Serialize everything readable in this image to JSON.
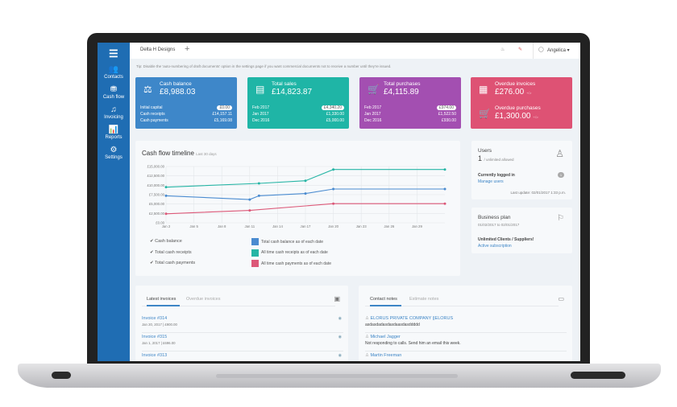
{
  "topbar": {
    "company": "Delta H Designs",
    "add": "+",
    "user": "Angelica ▾"
  },
  "tip": "Tip: Disable the 'auto-numbering of draft documents' option in the settings page if you want commercial documents not to receive a number until they're issued.",
  "sidebar": [
    {
      "label": "Contacts",
      "icon": "👥"
    },
    {
      "label": "Cash flow",
      "icon": "⛃"
    },
    {
      "label": "Invoicing",
      "icon": "♫"
    },
    {
      "label": "Reports",
      "icon": "📊"
    },
    {
      "label": "Settings",
      "icon": "⚙"
    }
  ],
  "cards": [
    {
      "title": "Cash balance",
      "value": "£8,988.03",
      "color": "#3e87c9",
      "icon": "⚖",
      "rows": [
        [
          "Initial capital",
          "£0.00"
        ],
        [
          "Cash receipts",
          "£14,157.11"
        ],
        [
          "Cash payments",
          "£5,169.08"
        ]
      ]
    },
    {
      "title": "Total sales",
      "value": "£14,823.87",
      "color": "#1fb5a6",
      "icon": "▤",
      "rows": [
        [
          "Feb 2017",
          "£4,340.20"
        ],
        [
          "Jan 2017",
          "£1,330.00"
        ],
        [
          "Dec 2016",
          "£5,000.00"
        ]
      ]
    },
    {
      "title": "Total purchases",
      "value": "£4,115.89",
      "color": "#a34fb1",
      "icon": "🛒",
      "rows": [
        [
          "Feb 2017",
          "£974.00"
        ],
        [
          "Jan 2017",
          "£1,522.50"
        ],
        [
          "Dec 2016",
          "£930.00"
        ]
      ]
    }
  ],
  "overdue": {
    "color": "#de5274",
    "inv_title": "Overdue invoices",
    "inv_value": "£276.00",
    "purch_title": "Overdue purchases",
    "purch_value": "£1,300.00",
    "suffix": "+Cr"
  },
  "chart_data": {
    "type": "line",
    "title": "Cash flow timeline",
    "subtitle": "Last 30 days",
    "yticks": [
      "£0.00",
      "£2,500.00",
      "£5,000.00",
      "£7,500.00",
      "£10,000.00",
      "£12,500.00",
      "£15,000.00"
    ],
    "ylim": [
      0,
      15000
    ],
    "xlim": [
      2,
      32
    ],
    "xticks": [
      {
        "d": 2,
        "l": "Jan 2"
      },
      {
        "d": 5,
        "l": "Jan 5"
      },
      {
        "d": 8,
        "l": "Jan 8"
      },
      {
        "d": 11,
        "l": "Jan 11"
      },
      {
        "d": 14,
        "l": "Jan 14"
      },
      {
        "d": 17,
        "l": "Jan 17"
      },
      {
        "d": 20,
        "l": "Jan 20"
      },
      {
        "d": 23,
        "l": "Jan 23"
      },
      {
        "d": 26,
        "l": "Jan 26"
      },
      {
        "d": 29,
        "l": "Jan 29"
      }
    ],
    "series": [
      {
        "name": "Cash balance",
        "legend": "Total cash balance as of each date",
        "color": "#4a8bd0",
        "points": [
          [
            2,
            7200
          ],
          [
            11,
            6200
          ],
          [
            12,
            7200
          ],
          [
            17,
            7800
          ],
          [
            20,
            9000
          ],
          [
            32,
            9000
          ]
        ]
      },
      {
        "name": "Total cash receipts",
        "legend": "All time cash receipts as of each date",
        "color": "#26b5a5",
        "points": [
          [
            2,
            9500
          ],
          [
            12,
            10500
          ],
          [
            17,
            11200
          ],
          [
            20,
            14200
          ],
          [
            32,
            14200
          ]
        ]
      },
      {
        "name": "Total cash payments",
        "legend": "All time cash payments as of each date",
        "color": "#dc5878",
        "points": [
          [
            2,
            2400
          ],
          [
            11,
            3300
          ],
          [
            20,
            5100
          ],
          [
            32,
            5100
          ]
        ]
      }
    ]
  },
  "users": {
    "title": "Users",
    "count": "1",
    "allowed": "/ unlimited allowed",
    "logged": "Currently logged in",
    "logged_count": "1",
    "manage": "Manage users",
    "update": "Last update: 02/01/2017 1:33 p.m."
  },
  "plan": {
    "title": "Business plan",
    "dates": "01/02/2017 to 02/01/2017",
    "name": "Unlimited Clients / Suppliers!",
    "status": "Active subscription"
  },
  "invoices": {
    "tabs": [
      "Latest invoices",
      "Overdue invoices"
    ],
    "items": [
      {
        "name": "Invoice #314",
        "meta": "Jan 20, 2017 | £900.00"
      },
      {
        "name": "Invoice #315",
        "meta": "Jan 1, 2017 | £696.00"
      },
      {
        "name": "Invoice #313",
        "meta": ""
      }
    ]
  },
  "notes": {
    "tabs": [
      "Contact notes",
      "Estimate notes"
    ],
    "items": [
      {
        "name": "ELORUS PRIVATE COMPANY ||ELORUS",
        "text": "asdasdadasdasdaasdasddddd"
      },
      {
        "name": "Michael Jagger",
        "text": "Not responding to calls. Send him an email this week."
      },
      {
        "name": "Martin Freeman",
        "text": ""
      }
    ]
  }
}
